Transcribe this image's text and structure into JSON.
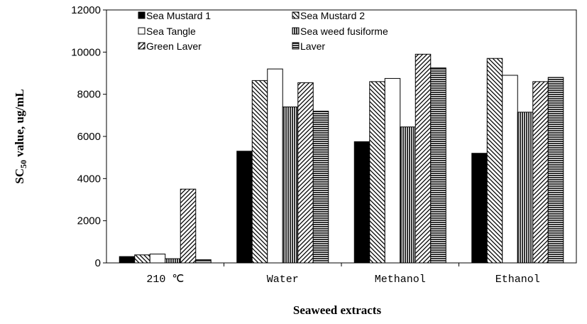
{
  "chart_data": {
    "type": "bar",
    "categories": [
      "210 ℃",
      "Water",
      "Methanol",
      "Ethanol"
    ],
    "series": [
      {
        "name": "Sea Mustard 1",
        "values": [
          300,
          5300,
          5750,
          5200
        ],
        "pattern": "solid"
      },
      {
        "name": "Sea Mustard 2",
        "values": [
          380,
          8650,
          8600,
          9700
        ],
        "pattern": "diag-back"
      },
      {
        "name": "Sea Tangle",
        "values": [
          420,
          9200,
          8750,
          8900
        ],
        "pattern": "white"
      },
      {
        "name": "Sea weed fusiforme",
        "values": [
          200,
          7400,
          6450,
          7150
        ],
        "pattern": "vertical"
      },
      {
        "name": "Green Laver",
        "values": [
          3500,
          8550,
          9900,
          8600
        ],
        "pattern": "diag-fwd"
      },
      {
        "name": "Laver",
        "values": [
          150,
          7200,
          9250,
          8800
        ],
        "pattern": "horizontal"
      }
    ],
    "xlabel": "Seaweed extracts",
    "ylabel_main": "SC",
    "ylabel_sub": "50",
    "ylabel_rest": " value, ug/mL",
    "ylim": [
      0,
      12000
    ],
    "yticks": [
      "0",
      "2000",
      "4000",
      "6000",
      "8000",
      "10000",
      "12000"
    ],
    "legend_position": "top-left-inside",
    "grid": false
  }
}
